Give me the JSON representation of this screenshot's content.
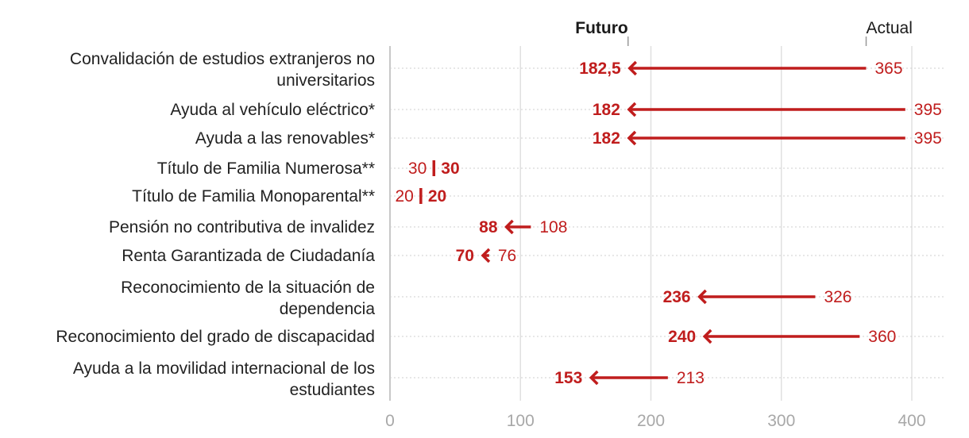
{
  "chart_data": {
    "type": "arrow-dot",
    "title": "",
    "legend": {
      "future_label": "Futuro",
      "current_label": "Actual"
    },
    "xlim": [
      0,
      400
    ],
    "x_ticks": [
      "0",
      "100",
      "200",
      "300",
      "400"
    ],
    "x_tick_values": [
      0,
      100,
      200,
      300,
      400
    ],
    "accent_color": "#c01d1d",
    "rows": [
      {
        "category_lines": [
          "Convalidación de estudios extranjeros no",
          "universitarios"
        ],
        "current": 365,
        "future": 182.5,
        "current_label": "365",
        "future_label": "182,5"
      },
      {
        "category_lines": [
          "Ayuda al vehículo eléctrico*"
        ],
        "current": 395,
        "future": 182,
        "current_label": "395",
        "future_label": "182"
      },
      {
        "category_lines": [
          "Ayuda a las renovables*"
        ],
        "current": 395,
        "future": 182,
        "current_label": "395",
        "future_label": "182"
      },
      {
        "category_lines": [
          "Título de Familia Numerosa**"
        ],
        "current": 30,
        "future": 30,
        "current_label": "30",
        "future_label": "30"
      },
      {
        "category_lines": [
          "Título de Familia Monoparental**"
        ],
        "current": 20,
        "future": 20,
        "current_label": "20",
        "future_label": "20"
      },
      {
        "category_lines": [
          "Pensión no contributiva de invalidez"
        ],
        "current": 108,
        "future": 88,
        "current_label": "108",
        "future_label": "88"
      },
      {
        "category_lines": [
          "Renta Garantizada de Ciudadanía"
        ],
        "current": 76,
        "future": 70,
        "current_label": "76",
        "future_label": "70"
      },
      {
        "category_lines": [
          "Reconocimiento de la situación de",
          "dependencia"
        ],
        "current": 326,
        "future": 236,
        "current_label": "326",
        "future_label": "236"
      },
      {
        "category_lines": [
          "Reconocimiento del grado de discapacidad"
        ],
        "current": 360,
        "future": 240,
        "current_label": "360",
        "future_label": "240"
      },
      {
        "category_lines": [
          "Ayuda a la movilidad internacional de los",
          "estudiantes"
        ],
        "current": 213,
        "future": 153,
        "current_label": "213",
        "future_label": "153"
      }
    ]
  }
}
